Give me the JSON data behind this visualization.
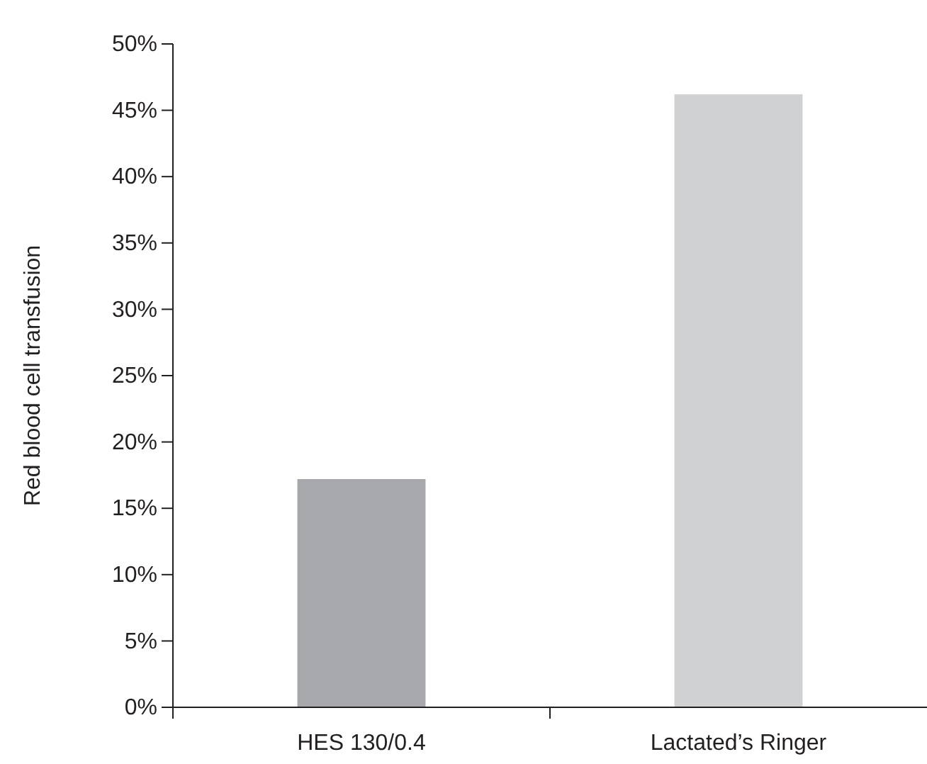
{
  "chart_data": {
    "type": "bar",
    "ylabel": "Red blood cell transfusion",
    "categories": [
      "HES 130/0.4",
      "Lactated’s Ringer"
    ],
    "values": [
      17.2,
      46.2
    ],
    "colors": [
      "#a7a8ab",
      "#d0d1d3"
    ],
    "ylim": [
      0,
      50
    ],
    "yticks": [
      {
        "value": 0,
        "label": "0%"
      },
      {
        "value": 5,
        "label": "5%"
      },
      {
        "value": 10,
        "label": "10%"
      },
      {
        "value": 15,
        "label": "15%"
      },
      {
        "value": 20,
        "label": "20%"
      },
      {
        "value": 25,
        "label": "25%"
      },
      {
        "value": 30,
        "label": "30%"
      },
      {
        "value": 35,
        "label": "35%"
      },
      {
        "value": 40,
        "label": "40%"
      },
      {
        "value": 45,
        "label": "45%"
      },
      {
        "value": 50,
        "label": "50%"
      }
    ],
    "grid": false,
    "legend": false
  }
}
